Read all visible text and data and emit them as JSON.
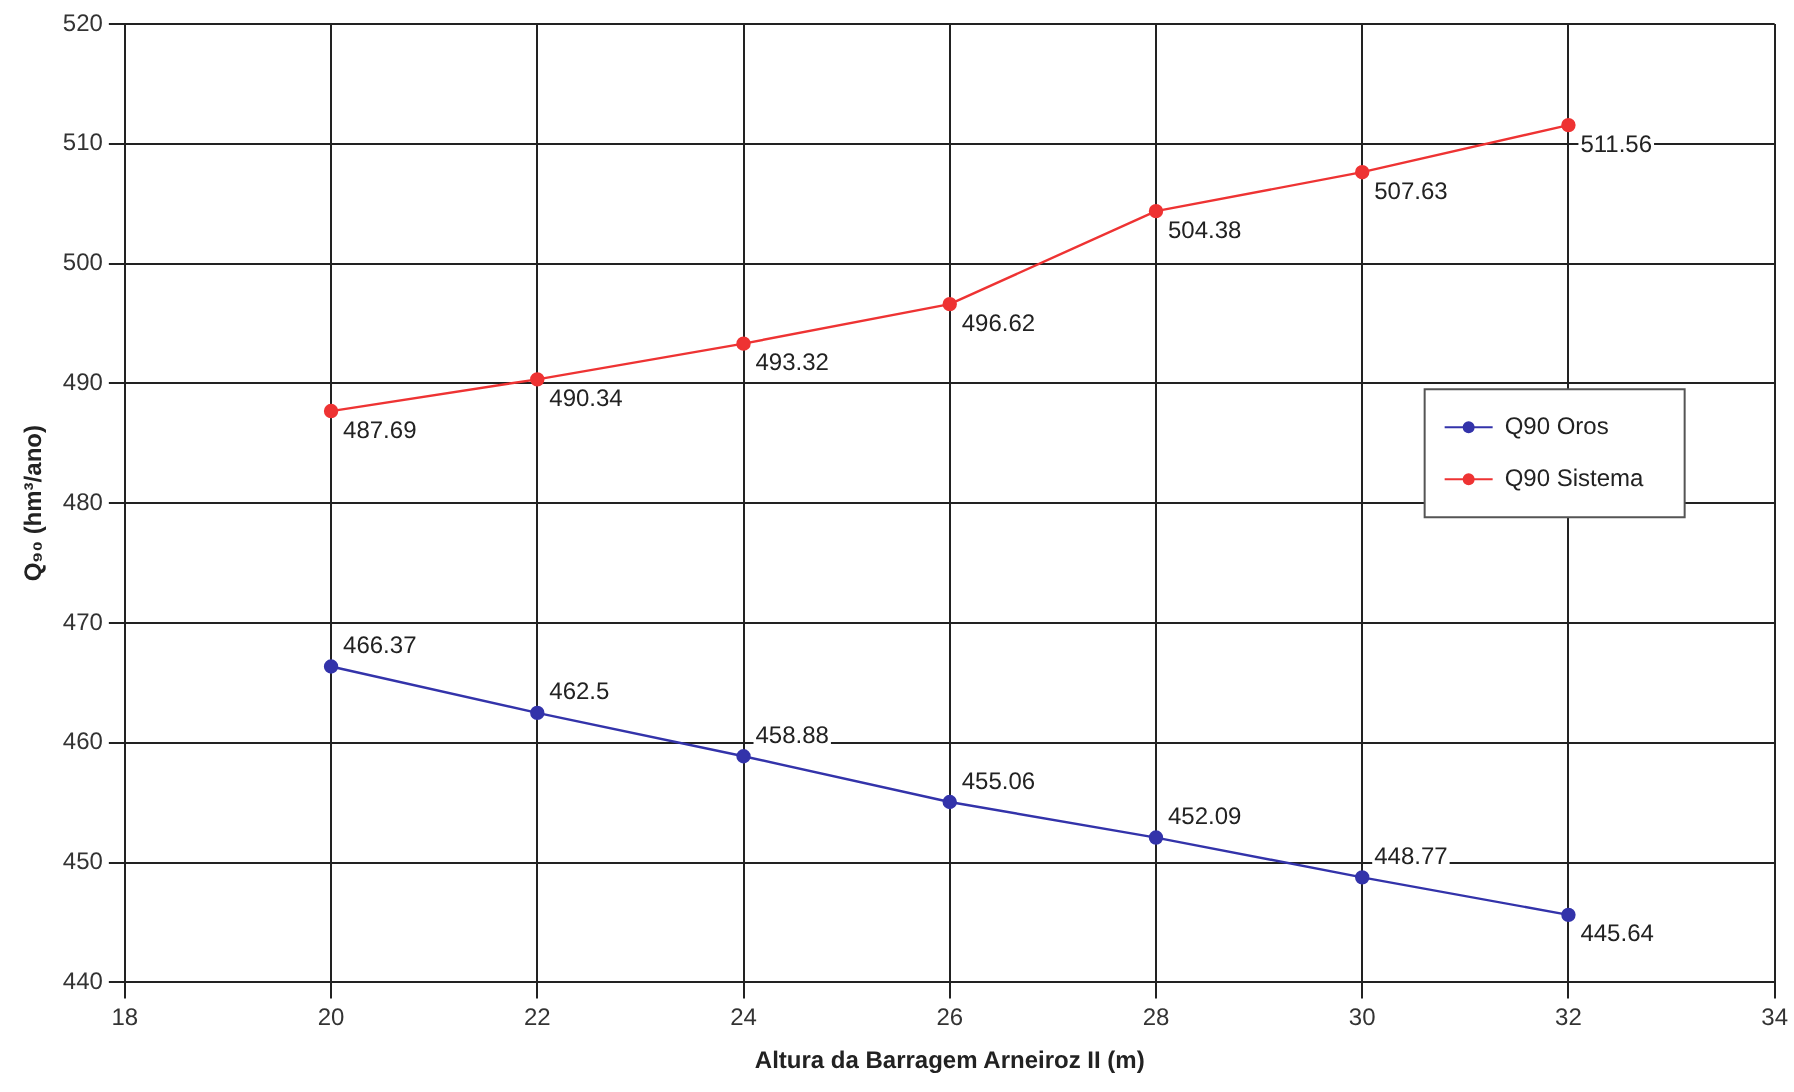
{
  "chart_data": {
    "type": "line",
    "xlabel": "Altura da Barragem Arneiroz II (m)",
    "ylabel": "Q₉₀ (hm³/ano)",
    "x": [
      20,
      22,
      24,
      26,
      28,
      30,
      32
    ],
    "series": [
      {
        "name": "Q90 Oros",
        "color": "#3333aa",
        "values": [
          466.37,
          462.5,
          458.88,
          455.06,
          452.09,
          448.77,
          445.64
        ]
      },
      {
        "name": "Q90 Sistema",
        "color": "#ee3333",
        "values": [
          487.69,
          490.34,
          493.32,
          496.62,
          504.38,
          507.63,
          511.56
        ]
      }
    ],
    "xlim": [
      18,
      34
    ],
    "xticks": [
      18,
      20,
      22,
      24,
      26,
      28,
      30,
      32,
      34
    ],
    "ylim": [
      440,
      520
    ],
    "yticks": [
      440,
      450,
      460,
      470,
      480,
      490,
      500,
      510,
      520
    ],
    "grid": true,
    "legend": "right",
    "marker": "circle",
    "line_style": "solid",
    "data_labels": true
  }
}
